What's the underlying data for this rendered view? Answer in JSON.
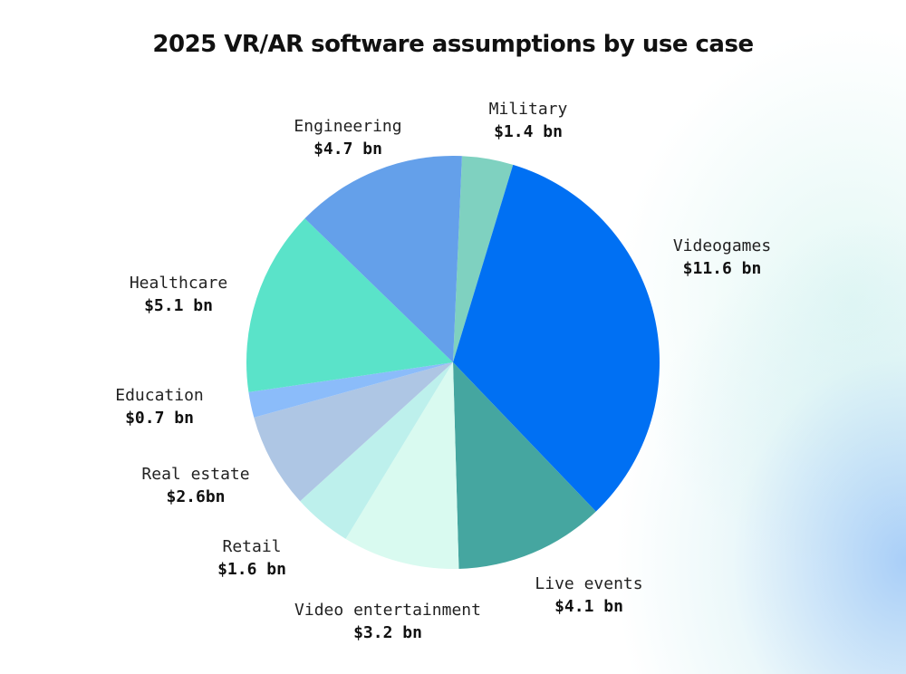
{
  "chart_data": {
    "type": "pie",
    "title": "2025 VR/AR software assumptions by use case",
    "slices": [
      {
        "name": "Military",
        "value": 1.4,
        "label": "$1.4 bn",
        "color": "#7fd1c0"
      },
      {
        "name": "Videogames",
        "value": 11.6,
        "label": "$11.6 bn",
        "color": "#0070f3"
      },
      {
        "name": "Live events",
        "value": 4.1,
        "label": "$4.1 bn",
        "color": "#45a6a0"
      },
      {
        "name": "Video entertainment",
        "value": 3.2,
        "label": "$3.2 bn",
        "color": "#d9faf0"
      },
      {
        "name": "Retail",
        "value": 1.6,
        "label": "$1.6 bn",
        "color": "#bdf0ec"
      },
      {
        "name": "Real estate",
        "value": 2.6,
        "label": "$2.6bn",
        "color": "#aec6e4"
      },
      {
        "name": "Education",
        "value": 0.7,
        "label": "$0.7 bn",
        "color": "#8bbcfa"
      },
      {
        "name": "Healthcare",
        "value": 5.1,
        "label": "$5.1 bn",
        "color": "#5ae3c9"
      },
      {
        "name": "Engineering",
        "value": 4.7,
        "label": "$4.7 bn",
        "color": "#64a0ea"
      }
    ]
  }
}
